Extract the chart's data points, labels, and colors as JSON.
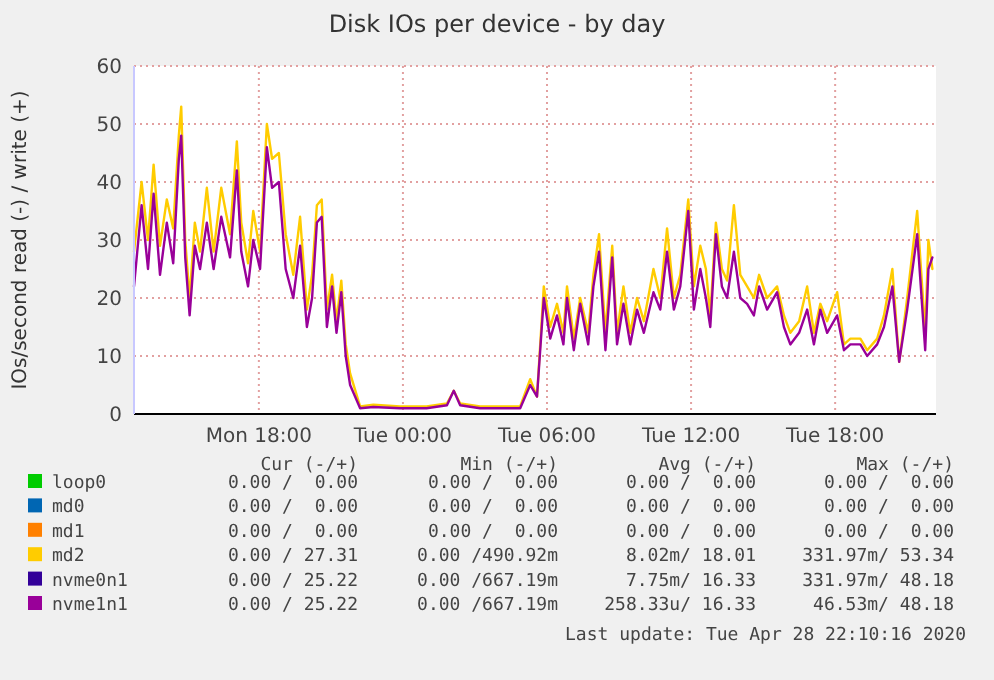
{
  "chart_data": {
    "type": "line",
    "title": "Disk IOs per device - by day",
    "ylabel": "IOs/second read (-) / write (+)",
    "x": [
      "2020-04-27T12:48",
      "2020-04-27T13:07",
      "2020-04-27T13:23",
      "2020-04-27T13:37",
      "2020-04-27T13:53",
      "2020-04-27T14:10",
      "2020-04-27T14:26",
      "2020-04-27T14:40",
      "2020-04-27T14:46",
      "2020-04-27T14:56",
      "2020-04-27T15:07",
      "2020-04-27T15:20",
      "2020-04-27T15:33",
      "2020-04-27T15:50",
      "2020-04-27T16:07",
      "2020-04-27T16:26",
      "2020-04-27T16:48",
      "2020-04-27T17:05",
      "2020-04-27T17:16",
      "2020-04-27T17:33",
      "2020-04-27T17:46",
      "2020-04-27T18:03",
      "2020-04-27T18:20",
      "2020-04-27T18:33",
      "2020-04-27T18:50",
      "2020-04-27T19:07",
      "2020-04-27T19:26",
      "2020-04-27T19:43",
      "2020-04-27T20:00",
      "2020-04-27T20:13",
      "2020-04-27T20:25",
      "2020-04-27T20:37",
      "2020-04-27T20:50",
      "2020-04-27T21:03",
      "2020-04-27T21:14",
      "2020-04-27T21:26",
      "2020-04-27T21:37",
      "2020-04-27T21:48",
      "2020-04-27T22:13",
      "2020-04-27T22:46",
      "2020-04-27T23:53",
      "2020-04-28T00:59",
      "2020-04-28T01:50",
      "2020-04-28T02:07",
      "2020-04-28T02:23",
      "2020-04-28T03:13",
      "2020-04-28T04:53",
      "2020-04-28T05:18",
      "2020-04-28T05:35",
      "2020-04-28T05:52",
      "2020-04-28T06:08",
      "2020-04-28T06:25",
      "2020-04-28T06:41",
      "2020-04-28T06:50",
      "2020-04-28T07:07",
      "2020-04-28T07:23",
      "2020-04-28T07:43",
      "2020-04-28T07:56",
      "2020-04-28T08:10",
      "2020-04-28T08:26",
      "2020-04-28T08:43",
      "2020-04-28T08:55",
      "2020-04-28T09:11",
      "2020-04-28T09:28",
      "2020-04-28T09:45",
      "2020-04-28T10:02",
      "2020-04-28T10:26",
      "2020-04-28T10:43",
      "2020-04-28T11:00",
      "2020-04-28T11:17",
      "2020-04-28T11:33",
      "2020-04-28T11:53",
      "2020-04-28T12:07",
      "2020-04-28T12:23",
      "2020-04-28T12:37",
      "2020-04-28T12:48",
      "2020-04-28T13:02",
      "2020-04-28T13:17",
      "2020-04-28T13:30",
      "2020-04-28T13:47",
      "2020-04-28T14:03",
      "2020-04-28T14:20",
      "2020-04-28T14:37",
      "2020-04-28T14:50",
      "2020-04-28T15:10",
      "2020-04-28T15:35",
      "2020-04-28T15:52",
      "2020-04-28T16:08",
      "2020-04-28T16:30",
      "2020-04-28T16:50",
      "2020-04-28T17:07",
      "2020-04-28T17:23",
      "2020-04-28T17:40",
      "2020-04-28T18:05",
      "2020-04-28T18:22",
      "2020-04-28T18:38",
      "2020-04-28T19:03",
      "2020-04-28T19:20",
      "2020-04-28T19:45",
      "2020-04-28T20:02",
      "2020-04-28T20:23",
      "2020-04-28T20:40",
      "2020-04-28T21:00",
      "2020-04-28T21:25",
      "2020-04-28T21:45",
      "2020-04-28T21:53",
      "2020-04-28T22:03"
    ],
    "series": [
      {
        "name": "loop0",
        "color": "#00cc00",
        "values": [
          null,
          null,
          null,
          null,
          null,
          null,
          null,
          null,
          null,
          null,
          null,
          null,
          null,
          null,
          null,
          null,
          null,
          null,
          null,
          null,
          null,
          null,
          null,
          null,
          null,
          null,
          null,
          null,
          null,
          null,
          null,
          null,
          null,
          null,
          null,
          null,
          null,
          null,
          null,
          null,
          null,
          null,
          null,
          null,
          null,
          null,
          null,
          null,
          null,
          null,
          null,
          null,
          null,
          null,
          null,
          null,
          null,
          null,
          null,
          null,
          null,
          null,
          null,
          null,
          null,
          null,
          null,
          null,
          null,
          null,
          null,
          null,
          null,
          null,
          null,
          null,
          null,
          null,
          null,
          null,
          null,
          null,
          null,
          null,
          null,
          null,
          null,
          null,
          null,
          null,
          null,
          null,
          null,
          null,
          null,
          null,
          null,
          null,
          null,
          null,
          null,
          null,
          null,
          null,
          null,
          null,
          null
        ]
      },
      {
        "name": "md0",
        "color": "#0066b3",
        "values": [
          null,
          null,
          null,
          null,
          null,
          null,
          null,
          null,
          null,
          null,
          null,
          null,
          null,
          null,
          null,
          null,
          null,
          null,
          null,
          null,
          null,
          null,
          null,
          null,
          null,
          null,
          null,
          null,
          null,
          null,
          null,
          null,
          null,
          null,
          null,
          null,
          null,
          null,
          null,
          null,
          null,
          null,
          null,
          null,
          null,
          null,
          null,
          null,
          null,
          null,
          null,
          null,
          null,
          null,
          null,
          null,
          null,
          null,
          null,
          null,
          null,
          null,
          null,
          null,
          null,
          null,
          null,
          null,
          null,
          null,
          null,
          null,
          null,
          null,
          null,
          null,
          null,
          null,
          null,
          null,
          null,
          null,
          null,
          null,
          null,
          null,
          null,
          null,
          null,
          null,
          null,
          null,
          null,
          null,
          null,
          null,
          null,
          null,
          null,
          null,
          null,
          null,
          null,
          null,
          null,
          null,
          null
        ]
      },
      {
        "name": "md1",
        "color": "#ff8000",
        "values": [
          null,
          null,
          null,
          null,
          null,
          null,
          null,
          null,
          null,
          null,
          null,
          null,
          null,
          null,
          null,
          null,
          null,
          null,
          null,
          null,
          null,
          null,
          null,
          null,
          null,
          null,
          null,
          null,
          null,
          null,
          null,
          null,
          null,
          null,
          null,
          null,
          null,
          null,
          null,
          null,
          null,
          null,
          null,
          null,
          null,
          null,
          null,
          null,
          null,
          null,
          null,
          null,
          null,
          null,
          null,
          null,
          null,
          null,
          null,
          null,
          null,
          null,
          null,
          null,
          null,
          null,
          null,
          null,
          null,
          null,
          null,
          null,
          null,
          null,
          null,
          null,
          null,
          null,
          null,
          null,
          null,
          null,
          null,
          null,
          null,
          null,
          null,
          null,
          null,
          null,
          null,
          null,
          null,
          null,
          null,
          null,
          null,
          null,
          null,
          null,
          null,
          null,
          null,
          null,
          null,
          null,
          null
        ]
      },
      {
        "name": "md2",
        "color": "#ffcc00",
        "values": [
          28,
          40,
          30,
          43,
          29,
          37,
          32,
          48,
          53,
          30,
          20,
          33,
          28,
          39,
          28,
          39,
          31,
          47,
          33,
          26,
          35,
          28,
          50,
          44,
          45,
          31,
          24,
          34,
          18,
          24,
          36,
          37,
          18,
          24,
          16,
          23,
          12,
          7,
          1.3,
          1.6,
          1.3,
          1.3,
          1.8,
          4,
          1.8,
          1.3,
          1.3,
          6,
          3,
          22,
          15,
          19,
          14,
          22,
          13,
          20,
          14,
          24,
          31,
          14,
          29,
          14,
          22,
          14,
          20,
          16,
          25,
          20,
          32,
          20,
          24,
          37,
          22,
          29,
          25,
          17,
          33,
          25,
          23,
          36,
          24,
          22,
          20,
          24,
          20,
          22,
          17,
          14,
          16,
          22,
          14,
          19,
          16,
          21,
          12,
          13,
          13,
          11,
          13,
          17,
          25,
          9,
          20,
          35,
          14,
          30,
          25
        ]
      },
      {
        "name": "nvme0n1",
        "color": "#330099",
        "values": [
          null,
          null,
          null,
          null,
          null,
          null,
          null,
          null,
          null,
          null,
          null,
          null,
          null,
          null,
          null,
          null,
          null,
          null,
          null,
          null,
          null,
          null,
          null,
          null,
          null,
          null,
          null,
          null,
          null,
          null,
          null,
          null,
          null,
          null,
          null,
          null,
          null,
          null,
          null,
          null,
          null,
          null,
          null,
          null,
          null,
          null,
          null,
          null,
          null,
          null,
          null,
          null,
          null,
          null,
          null,
          null,
          null,
          null,
          null,
          null,
          null,
          null,
          null,
          null,
          null,
          null,
          null,
          null,
          null,
          null,
          null,
          null,
          null,
          null,
          null,
          null,
          null,
          null,
          null,
          null,
          null,
          null,
          null,
          null,
          null,
          null,
          null,
          null,
          null,
          null,
          null,
          null,
          null,
          null,
          null,
          null,
          null,
          null,
          null,
          null,
          null,
          null,
          null,
          null,
          null,
          null,
          null
        ]
      },
      {
        "name": "nvme1n1",
        "color": "#990099",
        "values": [
          22,
          36,
          25,
          38,
          24,
          33,
          26,
          44,
          48,
          27,
          17,
          29,
          25,
          33,
          25,
          34,
          27,
          42,
          28,
          22,
          30,
          25,
          46,
          39,
          40,
          25,
          20,
          29,
          15,
          20,
          33,
          34,
          15,
          22,
          14,
          21,
          10,
          5,
          1,
          1.2,
          1,
          1,
          1.5,
          4,
          1.5,
          1,
          1,
          5,
          3,
          20,
          13,
          17,
          12,
          20,
          11,
          19,
          12,
          22,
          28,
          11,
          27,
          12,
          19,
          12,
          18,
          14,
          21,
          18,
          28,
          18,
          22,
          35,
          18,
          25,
          20,
          15,
          31,
          22,
          20,
          28,
          20,
          19,
          17,
          22,
          18,
          21,
          15,
          12,
          14,
          18,
          12,
          18,
          14,
          17,
          11,
          12,
          12,
          10,
          12,
          15,
          22,
          9,
          18,
          31,
          11,
          25,
          27
        ]
      }
    ],
    "xlim": [
      "2020-04-27T12:48",
      "2020-04-28T22:12"
    ],
    "xticks": [
      {
        "value": "2020-04-27T18:00",
        "label": "Mon 18:00"
      },
      {
        "value": "2020-04-28T00:00",
        "label": "Tue 00:00"
      },
      {
        "value": "2020-04-28T06:00",
        "label": "Tue 06:00"
      },
      {
        "value": "2020-04-28T12:00",
        "label": "Tue 12:00"
      },
      {
        "value": "2020-04-28T18:00",
        "label": "Tue 18:00"
      }
    ],
    "ylim": [
      0,
      60
    ],
    "yticks": [
      0,
      10,
      20,
      30,
      40,
      50,
      60
    ],
    "grid": true,
    "legend": "bottom",
    "annotations": [
      "Cur (-/+)",
      "Min (-/+)",
      "Avg (-/+)",
      "Max (-/+)",
      "0.00 /  0.00",
      "0.00 /  0.00",
      "0.00 /  0.00",
      "0.00 /  0.00",
      "0.00 /  0.00",
      "0.00 /  0.00",
      "0.00 /  0.00",
      "0.00 /  0.00",
      "0.00 /  0.00",
      "0.00 /  0.00",
      "0.00 /  0.00",
      "0.00 /  0.00",
      "0.00 / 27.31",
      "0.00 /490.92m",
      "8.02m/ 18.01",
      "331.97m/ 53.34",
      "0.00 / 25.22",
      "0.00 /667.19m",
      "7.75m/ 16.33",
      "331.97m/ 48.18",
      "0.00 / 25.22",
      "0.00 /667.19m",
      "258.33u/ 16.33",
      "46.53m/ 48.18",
      "Last update: Tue Apr 28 22:10:16 2020"
    ]
  }
}
